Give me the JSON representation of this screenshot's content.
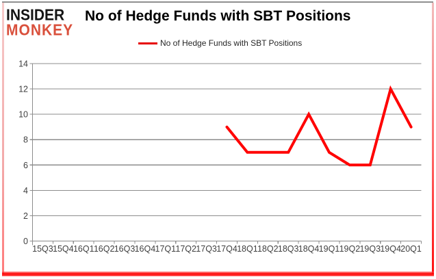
{
  "brand": {
    "line1": "INSIDER",
    "line2": "MONKEY"
  },
  "header": {
    "title": "No of Hedge Funds with SBT Positions"
  },
  "legend": {
    "label": "No of Hedge Funds with SBT Positions",
    "swatch_color": "#e60000"
  },
  "chart_data": {
    "type": "line",
    "title": "No of Hedge Funds with SBT Positions",
    "categories": [
      "15Q3",
      "15Q4",
      "16Q1",
      "16Q2",
      "16Q3",
      "16Q4",
      "17Q1",
      "17Q2",
      "17Q3",
      "17Q4",
      "18Q1",
      "18Q2",
      "18Q3",
      "18Q4",
      "19Q1",
      "19Q2",
      "19Q3",
      "19Q4",
      "20Q1"
    ],
    "series": [
      {
        "name": "No of Hedge Funds with SBT Positions",
        "color": "#ff0000",
        "values": [
          null,
          null,
          null,
          null,
          null,
          null,
          null,
          null,
          null,
          9,
          7,
          7,
          7,
          10,
          7,
          6,
          6,
          12,
          9
        ]
      }
    ],
    "xlabel": "",
    "ylabel": "",
    "ylim": [
      0,
      14
    ],
    "ytick_step": 2,
    "grid": true,
    "legend_position": "top",
    "gridline_color": "#8c8c8c",
    "axis_color": "#8c8c8c",
    "tick_label_color": "#3f3f3f"
  }
}
